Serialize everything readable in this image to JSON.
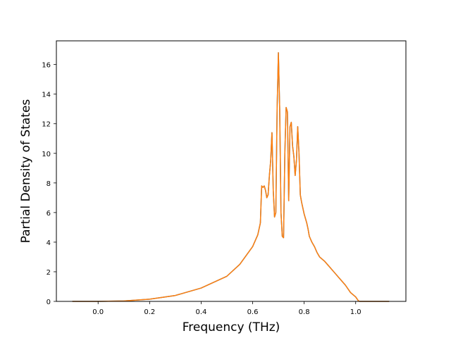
{
  "chart_data": {
    "type": "line",
    "title": "",
    "xlabel": "Frequency (THz)",
    "ylabel": "Partial Density of States",
    "xlim": [
      -0.162,
      1.195
    ],
    "ylim": [
      0,
      17.6
    ],
    "grid": false,
    "legend": "none",
    "xticks": [
      0.0,
      0.2,
      0.4,
      0.6,
      0.8,
      1.0
    ],
    "xtick_labels": [
      "0.0",
      "0.2",
      "0.4",
      "0.6",
      "0.8",
      "1.0"
    ],
    "yticks": [
      0,
      2,
      4,
      6,
      8,
      10,
      12,
      14,
      16
    ],
    "ytick_labels": [
      "0",
      "2",
      "4",
      "6",
      "8",
      "10",
      "12",
      "14",
      "16"
    ],
    "series": [
      {
        "color": "#1f77b4",
        "x": [
          -0.1,
          0.0,
          0.1,
          0.2,
          0.3,
          0.4,
          0.5,
          0.55,
          0.6,
          0.62,
          0.63,
          0.635,
          0.64,
          0.645,
          0.65,
          0.655,
          0.66,
          0.665,
          0.67,
          0.675,
          0.68,
          0.685,
          0.69,
          0.695,
          0.7,
          0.705,
          0.71,
          0.715,
          0.72,
          0.725,
          0.73,
          0.735,
          0.74,
          0.745,
          0.75,
          0.755,
          0.76,
          0.765,
          0.77,
          0.775,
          0.78,
          0.785,
          0.79,
          0.795,
          0.8,
          0.805,
          0.81,
          0.815,
          0.82,
          0.83,
          0.84,
          0.85,
          0.86,
          0.88,
          0.9,
          0.92,
          0.94,
          0.96,
          0.98,
          1.0,
          1.01,
          1.015,
          1.02,
          1.03,
          1.05,
          1.1,
          1.13
        ],
        "y": [
          0.0,
          0.0,
          0.03,
          0.15,
          0.4,
          0.9,
          1.7,
          2.5,
          3.7,
          4.5,
          5.3,
          7.8,
          7.7,
          7.8,
          7.5,
          7.0,
          7.2,
          8.5,
          9.5,
          11.4,
          7.5,
          5.7,
          6.0,
          13.0,
          16.8,
          13.0,
          6.0,
          4.4,
          4.3,
          10.0,
          13.1,
          12.8,
          6.8,
          11.8,
          12.1,
          10.5,
          9.8,
          8.5,
          9.5,
          11.8,
          10.0,
          7.2,
          6.7,
          6.3,
          5.9,
          5.6,
          5.3,
          4.9,
          4.4,
          4.0,
          3.7,
          3.3,
          3.0,
          2.7,
          2.3,
          1.9,
          1.5,
          1.1,
          0.6,
          0.3,
          0.05,
          0.0,
          0.0,
          0.0,
          0.0,
          0.0,
          0.0
        ]
      },
      {
        "color": "#ff7f0e",
        "x": [
          -0.1,
          0.0,
          0.1,
          0.2,
          0.3,
          0.4,
          0.5,
          0.55,
          0.6,
          0.62,
          0.63,
          0.635,
          0.64,
          0.645,
          0.65,
          0.655,
          0.66,
          0.665,
          0.67,
          0.675,
          0.68,
          0.685,
          0.69,
          0.695,
          0.7,
          0.705,
          0.71,
          0.715,
          0.72,
          0.725,
          0.73,
          0.735,
          0.74,
          0.745,
          0.75,
          0.755,
          0.76,
          0.765,
          0.77,
          0.775,
          0.78,
          0.785,
          0.79,
          0.795,
          0.8,
          0.805,
          0.81,
          0.815,
          0.82,
          0.83,
          0.84,
          0.85,
          0.86,
          0.88,
          0.9,
          0.92,
          0.94,
          0.96,
          0.98,
          1.0,
          1.01,
          1.015,
          1.02,
          1.03,
          1.05,
          1.1,
          1.13
        ],
        "y": [
          0.0,
          0.0,
          0.03,
          0.15,
          0.4,
          0.9,
          1.7,
          2.5,
          3.7,
          4.5,
          5.3,
          7.8,
          7.7,
          7.8,
          7.5,
          7.0,
          7.2,
          8.5,
          9.5,
          11.4,
          7.5,
          5.7,
          6.0,
          13.0,
          16.8,
          13.0,
          6.0,
          4.4,
          4.3,
          10.0,
          13.1,
          12.8,
          6.8,
          11.8,
          12.1,
          10.5,
          9.8,
          8.5,
          9.5,
          11.8,
          10.0,
          7.2,
          6.7,
          6.3,
          5.9,
          5.6,
          5.3,
          4.9,
          4.4,
          4.0,
          3.7,
          3.3,
          3.0,
          2.7,
          2.3,
          1.9,
          1.5,
          1.1,
          0.6,
          0.3,
          0.05,
          0.0,
          0.0,
          0.0,
          0.0,
          0.0,
          0.0
        ]
      }
    ]
  }
}
